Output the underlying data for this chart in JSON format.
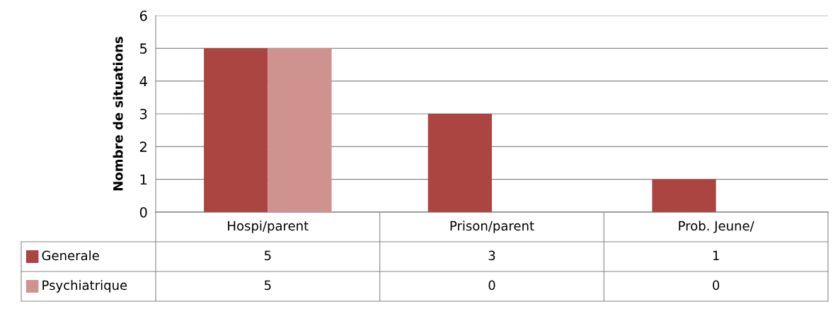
{
  "chart_data": {
    "type": "bar",
    "ylabel": "Nombre de situations",
    "categories": [
      "Hospi/parent",
      "Prison/parent",
      "Prob. Jeune/"
    ],
    "series": [
      {
        "name": "Generale",
        "color": "#ab4542",
        "values": [
          5,
          3,
          1
        ]
      },
      {
        "name": "Psychiatrique",
        "color": "#cf928f",
        "values": [
          5,
          0,
          0
        ]
      }
    ],
    "ylim": [
      0,
      6
    ],
    "yticks": [
      0,
      1,
      2,
      3,
      4,
      5,
      6
    ],
    "grid": "y",
    "legend": "bottom",
    "data_labels": true
  }
}
